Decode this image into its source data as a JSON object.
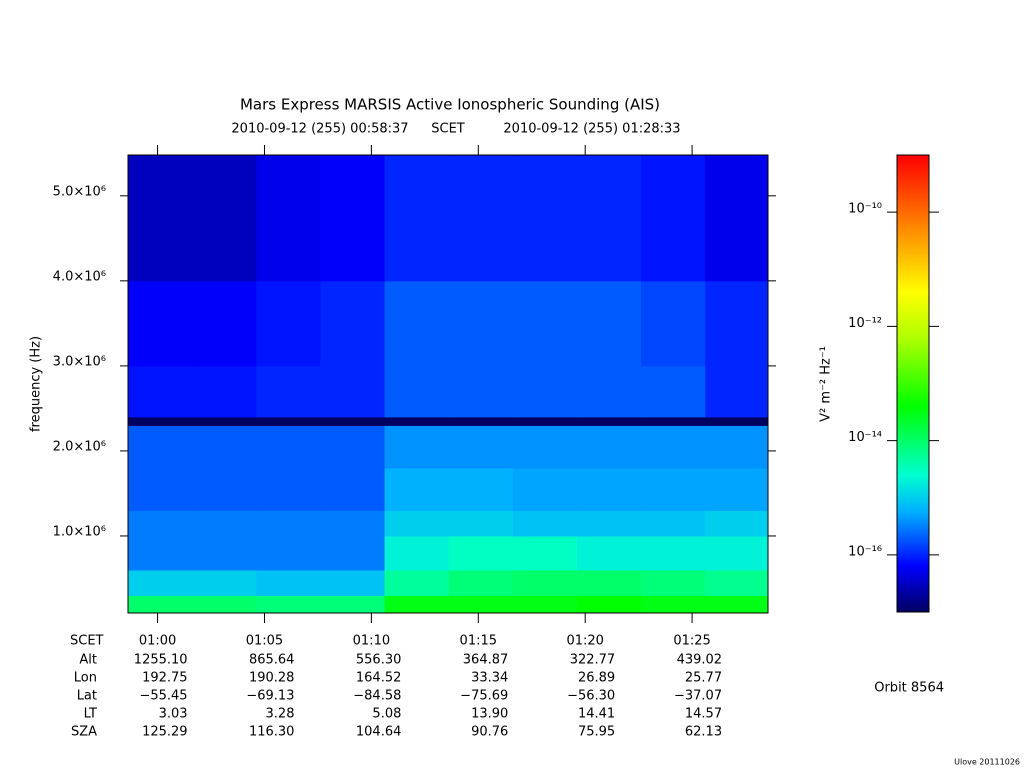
{
  "chart_data": {
    "type": "spectrogram",
    "title": "Mars Express MARSIS Active Ionospheric Sounding (AIS)",
    "start": "2010-09-12 (255) 00:58:37",
    "time_label": "SCET",
    "end": "2010-09-12 (255) 01:28:33",
    "ylabel": "frequency (Hz)",
    "xlim": [
      "00:58:37",
      "01:28:33"
    ],
    "xticks": [
      "01:00",
      "01:05",
      "01:10",
      "01:15",
      "01:20",
      "01:25"
    ],
    "ylim": [
      94000,
      5480000
    ],
    "yticks": [
      {
        "value": 1000000,
        "label": "1.0×10⁶"
      },
      {
        "value": 2000000,
        "label": "2.0×10⁶"
      },
      {
        "value": 3000000,
        "label": "3.0×10⁶"
      },
      {
        "value": 4000000,
        "label": "4.0×10⁶"
      },
      {
        "value": 5000000,
        "label": "5.0×10⁶"
      }
    ],
    "time_edges": [
      "00:58:37",
      "01:01:37",
      "01:04:37",
      "01:07:37",
      "01:10:37",
      "01:13:37",
      "01:16:37",
      "01:19:37",
      "01:22:37",
      "01:25:37",
      "01:28:33"
    ],
    "freq_edges": [
      94000,
      300000,
      600000,
      1000000,
      1300000,
      1800000,
      2300000,
      2400000,
      3000000,
      4000000,
      5480000
    ],
    "z": [
      [
        1e-14,
        1e-14,
        8e-15,
        8e-15,
        3e-14,
        3e-14,
        3e-14,
        4e-14,
        3e-14,
        3e-14
      ],
      [
        1e-15,
        1e-15,
        8e-16,
        8e-16,
        5e-15,
        8e-15,
        1e-14,
        1e-14,
        8e-15,
        6e-15
      ],
      [
        3e-16,
        3e-16,
        3e-16,
        3e-16,
        2e-15,
        3e-15,
        3e-15,
        2e-15,
        2e-15,
        2e-15
      ],
      [
        3e-16,
        3e-16,
        3e-16,
        3e-16,
        1e-15,
        1e-15,
        8e-16,
        8e-16,
        8e-16,
        1e-15
      ],
      [
        2e-16,
        2e-16,
        2e-16,
        2e-16,
        6e-16,
        6e-16,
        5e-16,
        5e-16,
        5e-16,
        5e-16
      ],
      [
        2e-16,
        2e-16,
        2e-16,
        2e-16,
        4e-16,
        4e-16,
        4e-16,
        4e-16,
        4e-16,
        4e-16
      ],
      [
        1e-17,
        1e-17,
        1e-17,
        1e-17,
        1e-17,
        1e-17,
        1e-17,
        1e-17,
        1e-17,
        1e-17
      ],
      [
        8e-17,
        8e-17,
        1e-16,
        1e-16,
        2e-16,
        2e-16,
        2e-16,
        2e-16,
        2e-16,
        1e-16
      ],
      [
        6e-17,
        6e-17,
        8e-17,
        1e-16,
        2e-16,
        2e-16,
        2e-16,
        2e-16,
        1.5e-16,
        1e-16
      ],
      [
        3e-17,
        3e-17,
        5e-17,
        6e-17,
        1e-16,
        1e-16,
        1e-16,
        1e-16,
        8e-17,
        5e-17
      ]
    ],
    "zlabel": "V² m⁻² Hz⁻¹",
    "zlog": true,
    "zlim": [
      1e-17,
      1e-09
    ],
    "zticks": [
      {
        "value": 1e-10,
        "label": "10⁻¹⁰"
      },
      {
        "value": 1e-12,
        "label": "10⁻¹²"
      },
      {
        "value": 1e-14,
        "label": "10⁻¹⁴"
      },
      {
        "value": 1e-16,
        "label": "10⁻¹⁶"
      }
    ],
    "ephemeris": {
      "labels": [
        "Alt",
        "Lon",
        "Lat",
        "LT",
        "SZA"
      ],
      "rows": [
        [
          "1255.10",
          "865.64",
          "556.30",
          "364.87",
          "322.77",
          "439.02"
        ],
        [
          "192.75",
          "190.28",
          "164.52",
          "33.34",
          "26.89",
          "25.77"
        ],
        [
          "−55.45",
          "−69.13",
          "−84.58",
          "−75.69",
          "−56.30",
          "−37.07"
        ],
        [
          "3.03",
          "3.28",
          "5.08",
          "13.90",
          "14.41",
          "14.57"
        ],
        [
          "125.29",
          "116.30",
          "104.64",
          "90.76",
          "75.95",
          "62.13"
        ]
      ]
    },
    "orbit": "Orbit 8564",
    "footer": "Ulove 20111026"
  }
}
